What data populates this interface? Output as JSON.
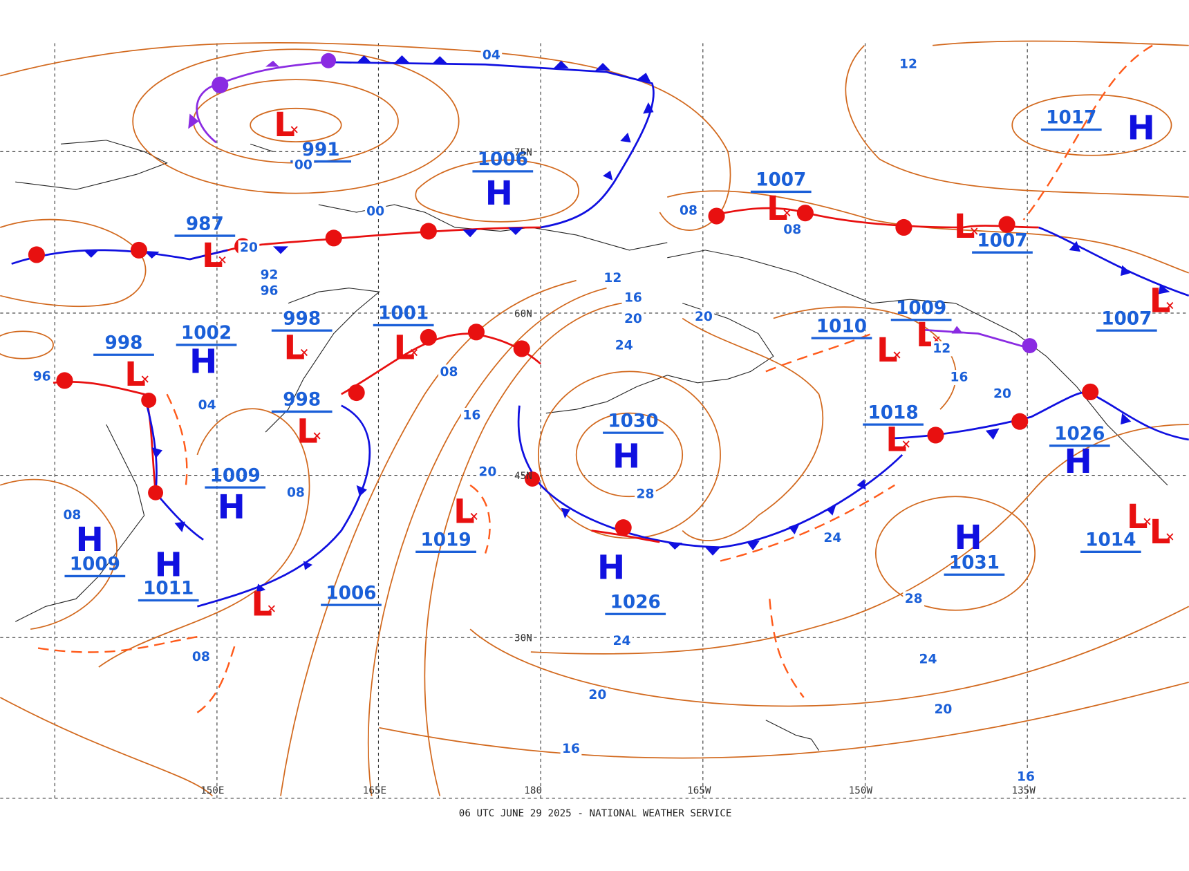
{
  "centers": [
    {
      "symbol": "L",
      "pressure": "991"
    },
    {
      "symbol": "H",
      "pressure": "1006"
    },
    {
      "symbol": "L",
      "pressure": "987"
    },
    {
      "symbol": "H",
      "pressure": "1002"
    },
    {
      "symbol": "L",
      "pressure": "998"
    },
    {
      "symbol": "L",
      "pressure": "1001"
    },
    {
      "symbol": "L",
      "pressure": "998"
    },
    {
      "symbol": "L",
      "pressure": "998"
    },
    {
      "symbol": "H",
      "pressure": "1009"
    },
    {
      "symbol": "H",
      "pressure": "1009"
    },
    {
      "symbol": "H",
      "pressure": "1011"
    },
    {
      "symbol": "L"
    },
    {
      "pressure": "1006"
    },
    {
      "symbol": "L",
      "pressure": "1019"
    },
    {
      "symbol": "H",
      "pressure": "1030"
    },
    {
      "symbol": "H",
      "pressure": "1026"
    },
    {
      "symbol": "L",
      "pressure": "1007"
    },
    {
      "symbol": "L",
      "pressure": "1010"
    },
    {
      "symbol": "L",
      "pressure": "1009"
    },
    {
      "symbol": "L",
      "pressure": "1018"
    },
    {
      "symbol": "L",
      "pressure": "1007"
    },
    {
      "symbol": "H",
      "pressure": "1026"
    },
    {
      "symbol": "H",
      "pressure": "1031"
    },
    {
      "symbol": "H",
      "pressure": "1017"
    },
    {
      "symbol": "L",
      "pressure": "1007"
    },
    {
      "symbol": "L",
      "pressure": "1014"
    },
    {
      "symbol": "L"
    }
  ],
  "isobar_labels": [
    "04",
    "12",
    "00",
    "00",
    "92",
    "96",
    "12",
    "16",
    "20",
    "24",
    "20",
    "08",
    "08",
    "12",
    "16",
    "20",
    "08",
    "16",
    "20",
    "04",
    "08",
    "08",
    "08",
    "28",
    "24",
    "28",
    "24",
    "24",
    "20",
    "20",
    "16",
    "16",
    "96",
    "20"
  ],
  "grid_labels": {
    "longitudes": [
      "150E",
      "165E",
      "180",
      "165W",
      "150W",
      "135W"
    ],
    "latitudes": [
      "75N",
      "60N",
      "45N",
      "30N"
    ]
  },
  "footer": "06 UTC JUNE 29 2025 - NATIONAL WEATHER SERVICE"
}
